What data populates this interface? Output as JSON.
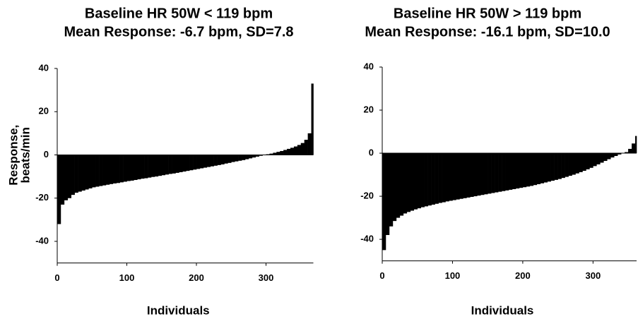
{
  "chart_data": [
    {
      "type": "bar",
      "title": "Baseline HR 50W < 119 bpm",
      "subtitle": "Mean Response: -6.7 bpm, SD=7.8",
      "x_label": "Individuals",
      "y_label": [
        "Response,",
        "beats/min"
      ],
      "color": "#000000",
      "xlim": [
        0,
        368
      ],
      "xticks": [
        0,
        100,
        200,
        300
      ],
      "ylim": [
        -50,
        40
      ],
      "yticks": [
        -40,
        -20,
        0,
        20,
        40
      ],
      "x": [
        0,
        5,
        10,
        15,
        20,
        25,
        30,
        35,
        40,
        45,
        50,
        55,
        60,
        65,
        70,
        75,
        80,
        85,
        90,
        95,
        100,
        105,
        110,
        115,
        120,
        125,
        130,
        135,
        140,
        145,
        150,
        155,
        160,
        165,
        170,
        175,
        180,
        185,
        190,
        195,
        200,
        205,
        210,
        215,
        220,
        225,
        230,
        235,
        240,
        245,
        250,
        255,
        260,
        265,
        270,
        275,
        280,
        285,
        290,
        295,
        300,
        305,
        310,
        315,
        320,
        325,
        330,
        335,
        340,
        345,
        350,
        355,
        360,
        365
      ],
      "values": [
        -32,
        -23,
        -21,
        -20,
        -18.5,
        -17.5,
        -17,
        -16.5,
        -16,
        -15.5,
        -15,
        -14.7,
        -14.4,
        -14.1,
        -13.8,
        -13.5,
        -13.2,
        -13,
        -12.7,
        -12.4,
        -12.1,
        -11.9,
        -11.6,
        -11.3,
        -11,
        -10.8,
        -10.5,
        -10.2,
        -10,
        -9.7,
        -9.4,
        -9.1,
        -8.8,
        -8.6,
        -8.3,
        -8,
        -7.7,
        -7.4,
        -7.1,
        -6.8,
        -6.5,
        -6.2,
        -5.9,
        -5.6,
        -5.3,
        -5,
        -4.7,
        -4.4,
        -4,
        -3.7,
        -3.3,
        -3,
        -2.7,
        -2.4,
        -2,
        -1.6,
        -1.2,
        -0.8,
        -0.4,
        0,
        0.3,
        0.6,
        1,
        1.4,
        1.8,
        2.3,
        2.8,
        3.3,
        3.9,
        4.6,
        5.5,
        7,
        10,
        33
      ]
    },
    {
      "type": "bar",
      "title": "Baseline HR 50W > 119 bpm",
      "subtitle": "Mean Response: -16.1 bpm, SD=10.0",
      "x_label": "Individuals",
      "color": "#000000",
      "xlim": [
        0,
        362
      ],
      "xticks": [
        0,
        100,
        200,
        300
      ],
      "ylim": [
        -50,
        40
      ],
      "yticks": [
        -40,
        -20,
        0,
        20,
        40
      ],
      "x": [
        0,
        5,
        10,
        15,
        20,
        25,
        30,
        35,
        40,
        45,
        50,
        55,
        60,
        65,
        70,
        75,
        80,
        85,
        90,
        95,
        100,
        105,
        110,
        115,
        120,
        125,
        130,
        135,
        140,
        145,
        150,
        155,
        160,
        165,
        170,
        175,
        180,
        185,
        190,
        195,
        200,
        205,
        210,
        215,
        220,
        225,
        230,
        235,
        240,
        245,
        250,
        255,
        260,
        265,
        270,
        275,
        280,
        285,
        290,
        295,
        300,
        305,
        310,
        315,
        320,
        325,
        330,
        335,
        340,
        345,
        350,
        355,
        360
      ],
      "values": [
        -45,
        -38,
        -34,
        -31.5,
        -30,
        -29,
        -28,
        -27.3,
        -26.7,
        -26.1,
        -25.6,
        -25.1,
        -24.7,
        -24.3,
        -23.9,
        -23.5,
        -23.1,
        -22.8,
        -22.4,
        -22.1,
        -21.8,
        -21.5,
        -21.2,
        -20.9,
        -20.6,
        -20.3,
        -20,
        -19.7,
        -19.4,
        -19.1,
        -18.8,
        -18.5,
        -18.2,
        -17.9,
        -17.6,
        -17.3,
        -17,
        -16.7,
        -16.4,
        -16.1,
        -15.8,
        -15.5,
        -15.2,
        -14.8,
        -14.4,
        -14,
        -13.6,
        -13.2,
        -12.8,
        -12.4,
        -12,
        -11.5,
        -11,
        -10.5,
        -10,
        -9.4,
        -8.8,
        -8.2,
        -7.5,
        -6.8,
        -6,
        -5.2,
        -4.4,
        -3.6,
        -2.8,
        -2,
        -1.3,
        -0.6,
        -0.1,
        0.5,
        2,
        4.5,
        8
      ]
    }
  ]
}
